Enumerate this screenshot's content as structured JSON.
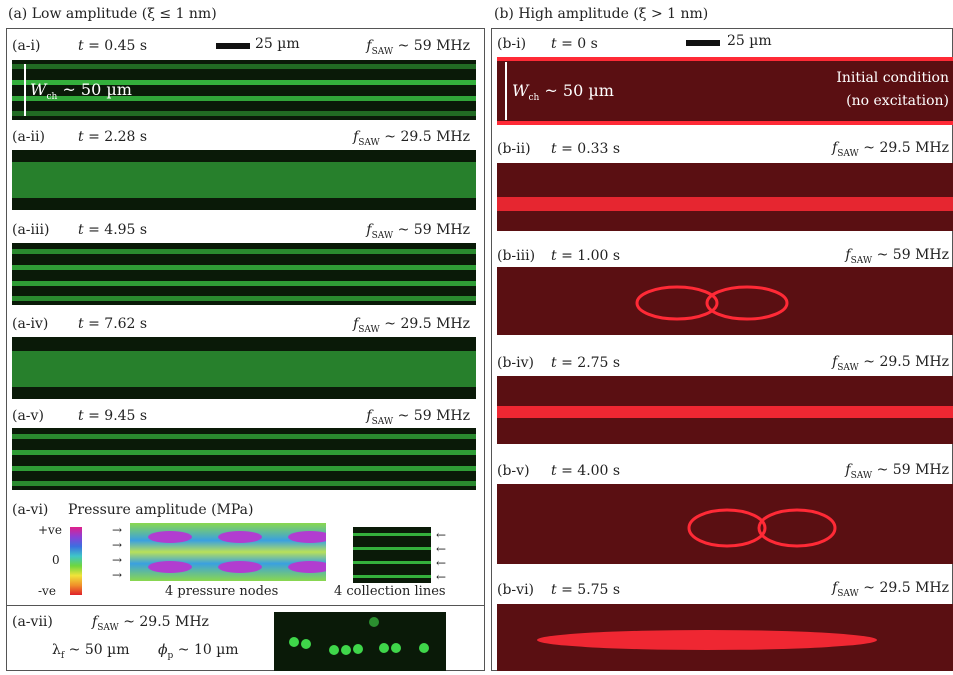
{
  "panel_a": {
    "title": "(a) Low amplitude (ξ ≤ 1 nm)",
    "scale_bar": "25 µm",
    "channel_width": "~ 50 µm",
    "panels": [
      {
        "label": "(a-i)",
        "time": "0.45 s",
        "freq": "~ 59 MHz"
      },
      {
        "label": "(a-ii)",
        "time": "2.28 s",
        "freq": "~ 29.5 MHz"
      },
      {
        "label": "(a-iii)",
        "time": "4.95 s",
        "freq": "~ 59 MHz"
      },
      {
        "label": "(a-iv)",
        "time": "7.62 s",
        "freq": "~ 29.5 MHz"
      },
      {
        "label": "(a-v)",
        "time": "9.45 s",
        "freq": "~ 59 MHz"
      }
    ],
    "vi": {
      "label": "(a-vi)",
      "heading": "Pressure amplitude (MPa)",
      "scale_top": "+ve",
      "scale_mid": "0",
      "scale_bottom": "-ve",
      "caption_nodes": "4 pressure nodes",
      "caption_lines": "4 collection lines"
    },
    "vii": {
      "label": "(a-vii)",
      "freq": "~ 29.5 MHz",
      "lambda": "~ 50 µm",
      "phi": "~ 10 µm"
    }
  },
  "panel_b": {
    "title": "(b) High amplitude (ξ > 1 nm)",
    "scale_bar": "25 µm",
    "channel_width": "~ 50 µm",
    "initial_1": "Initial condition",
    "initial_2": "(no excitation)",
    "panels": [
      {
        "label": "(b-i)",
        "time": "0 s"
      },
      {
        "label": "(b-ii)",
        "time": "0.33 s",
        "freq": "~ 29.5 MHz"
      },
      {
        "label": "(b-iii)",
        "time": "1.00 s",
        "freq": "~ 59 MHz"
      },
      {
        "label": "(b-iv)",
        "time": "2.75 s",
        "freq": "~ 29.5 MHz"
      },
      {
        "label": "(b-v)",
        "time": "4.00 s",
        "freq": "~ 59 MHz"
      },
      {
        "label": "(b-vi)",
        "time": "5.75 s",
        "freq": "~ 29.5 MHz"
      }
    ]
  },
  "colors": {
    "green": "#3fd64a",
    "red": "#ff2a36"
  }
}
